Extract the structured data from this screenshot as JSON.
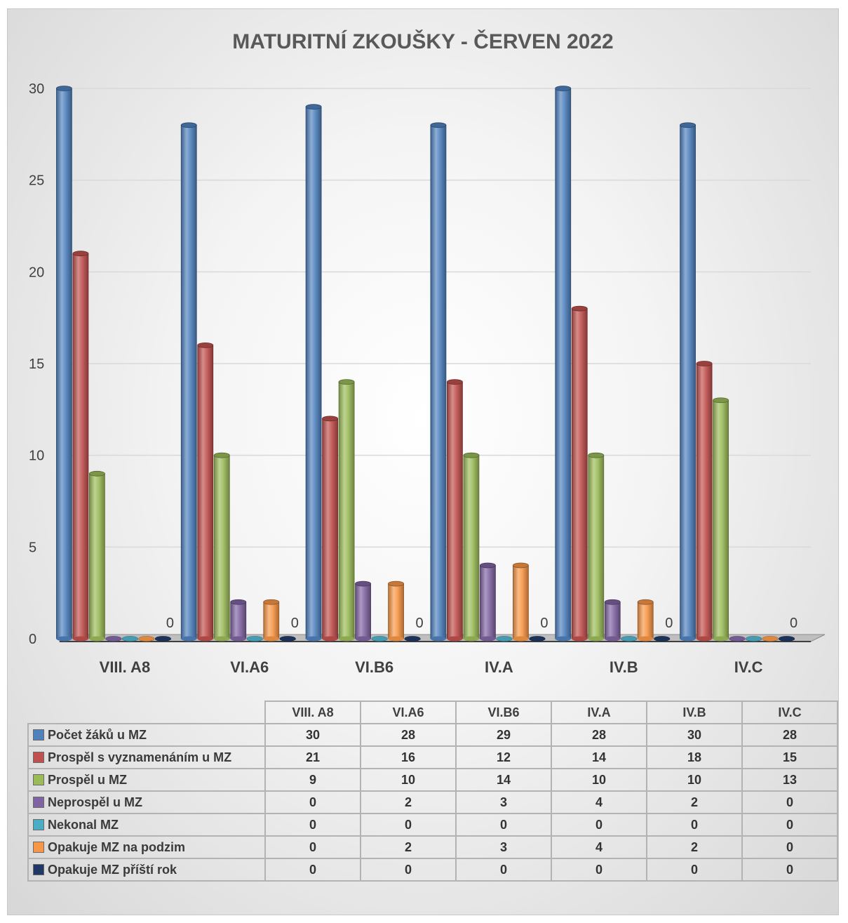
{
  "chart_data": {
    "type": "bar",
    "title": "MATURITNÍ ZKOUŠKY - ČERVEN 2022",
    "categories": [
      "VIII. A8",
      "VI.A6",
      "VI.B6",
      "IV.A",
      "IV.B",
      "IV.C"
    ],
    "ylim": [
      0,
      30
    ],
    "yticks": [
      "0",
      "5",
      "10",
      "15",
      "20",
      "25",
      "30"
    ],
    "grid": true,
    "series": [
      {
        "name": "Počet žáků u MZ",
        "color": "#4f81bd",
        "values": [
          30,
          28,
          29,
          28,
          30,
          28
        ]
      },
      {
        "name": "Prospěl s vyznamenáním u MZ",
        "color": "#c0504d",
        "values": [
          21,
          16,
          12,
          14,
          18,
          15
        ]
      },
      {
        "name": "Prospěl u MZ",
        "color": "#9bbb59",
        "values": [
          9,
          10,
          14,
          10,
          10,
          13
        ]
      },
      {
        "name": "Neprospěl u MZ",
        "color": "#8064a2",
        "values": [
          0,
          2,
          3,
          4,
          2,
          0
        ]
      },
      {
        "name": "Nekonal MZ",
        "color": "#4bacc6",
        "values": [
          0,
          0,
          0,
          0,
          0,
          0
        ]
      },
      {
        "name": "Opakuje MZ  na podzim",
        "color": "#f79646",
        "values": [
          0,
          2,
          3,
          4,
          2,
          0
        ]
      },
      {
        "name": "Opakuje MZ příští rok",
        "color": "#1f3864",
        "values": [
          0,
          0,
          0,
          0,
          0,
          0
        ]
      }
    ],
    "data_labels": {
      "series": "Opakuje MZ příští rok",
      "values": [
        "0",
        "0",
        "0",
        "0",
        "0",
        "0"
      ]
    },
    "legend": "data-table-below"
  }
}
